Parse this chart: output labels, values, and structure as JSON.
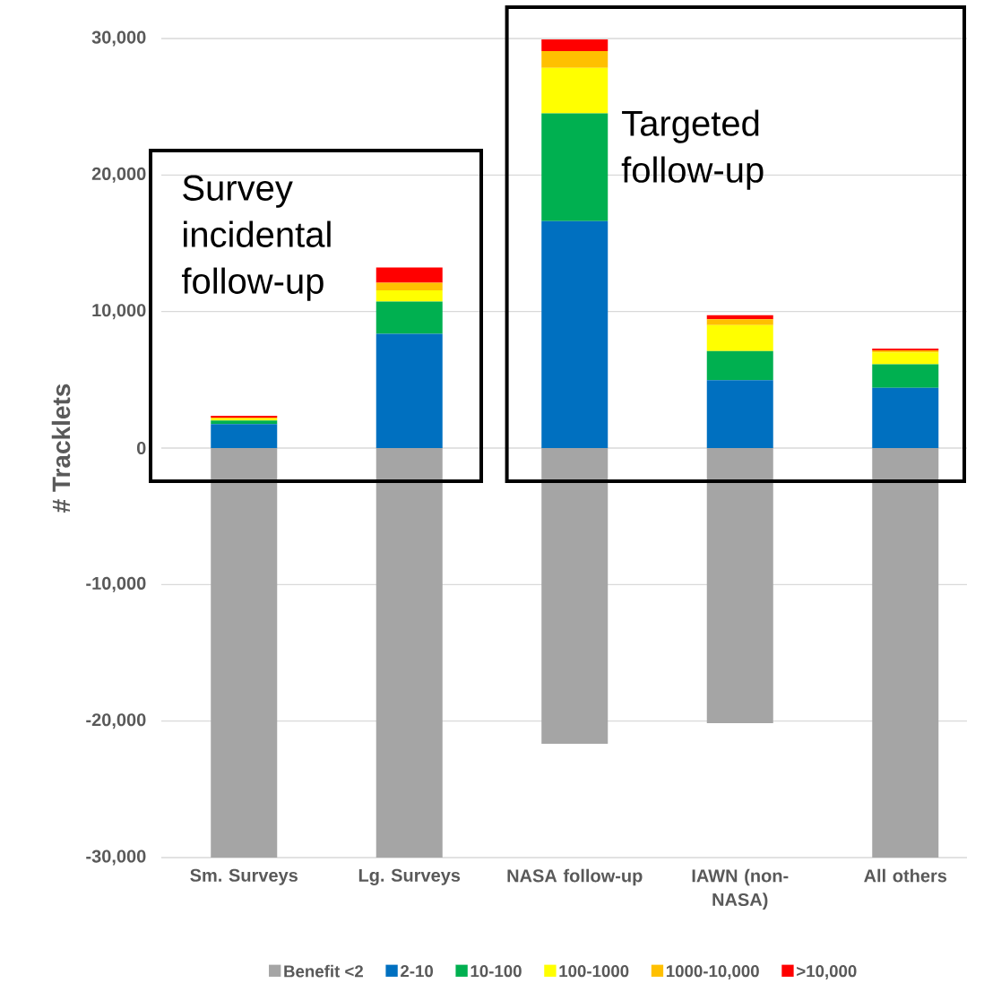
{
  "chart_data": {
    "type": "bar",
    "stacked": true,
    "ylabel": "# Tracklets",
    "categories": [
      "Sm. Surveys",
      "Lg. Surveys",
      "NASA follow-up",
      "IAWN (non-NASA)",
      "All others"
    ],
    "series": [
      {
        "name": "Benefit <2",
        "color": "#a5a5a5",
        "values": [
          -30000,
          -30000,
          -21660,
          -20150,
          -30000
        ]
      },
      {
        "name": "2-10",
        "color": "#0070c0",
        "values": [
          1750,
          8370,
          16620,
          4970,
          4420
        ]
      },
      {
        "name": "10-100",
        "color": "#00b050",
        "values": [
          270,
          2370,
          7900,
          2140,
          1710
        ]
      },
      {
        "name": "100-1000",
        "color": "#ffff00",
        "values": [
          130,
          820,
          3330,
          1900,
          870
        ]
      },
      {
        "name": "1000-10,000",
        "color": "#ffc000",
        "values": [
          90,
          550,
          1230,
          420,
          160
        ]
      },
      {
        "name": ">10,000",
        "color": "#ff0000",
        "values": [
          130,
          1110,
          850,
          310,
          130
        ]
      }
    ],
    "ylim": [
      -30000,
      30000
    ],
    "yticks": [
      {
        "value": -30000,
        "label": "-30,000"
      },
      {
        "value": -20000,
        "label": "-20,000"
      },
      {
        "value": -10000,
        "label": "-10,000"
      },
      0,
      {
        "value": 10000,
        "label": "10,000"
      },
      {
        "value": 20000,
        "label": "20,000"
      },
      {
        "value": 30000,
        "label": "30,000"
      }
    ],
    "grid": "y",
    "legend": "bottom",
    "annotations": [
      "Survey incidental follow-up",
      "Targeted follow-up"
    ]
  }
}
